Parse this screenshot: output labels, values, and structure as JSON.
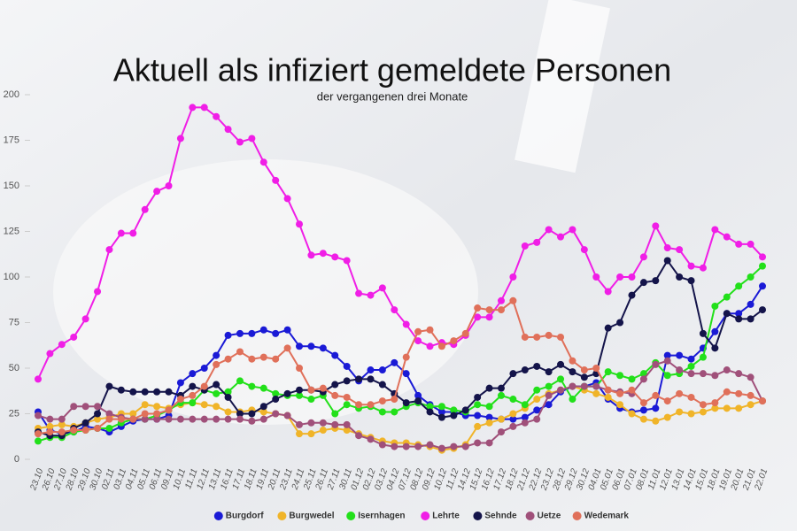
{
  "chart_data": {
    "type": "line",
    "title": "Aktuell als infiziert gemeldete Personen",
    "subtitle": "der vergangenen drei Monate",
    "categories": [
      "23.10",
      "26.10",
      "27.10",
      "28.10",
      "29.10",
      "30.10",
      "02.11",
      "03.11",
      "04.11",
      "05.11",
      "06.11",
      "09.11",
      "10.11",
      "11.11",
      "12.11",
      "13.11",
      "16.11",
      "17.11",
      "18.11",
      "19.11",
      "20.11",
      "23.11",
      "24.11",
      "25.11",
      "26.11",
      "27.11",
      "30.11",
      "01.12",
      "02.12",
      "03.12",
      "04.12",
      "07.12",
      "08.12",
      "09.12",
      "10.12",
      "11.12",
      "14.12",
      "15.12",
      "16.12",
      "17.12",
      "18.12",
      "21.12",
      "22.12",
      "23.12",
      "28.12",
      "29.12",
      "30.12",
      "04.01",
      "05.01",
      "06.01",
      "07.01",
      "08.01",
      "11.01",
      "12.01",
      "13.01",
      "14.01",
      "15.01",
      "18.01",
      "19.01",
      "20.01",
      "21.01",
      "22.01"
    ],
    "series": [
      {
        "name": "Burgdorf",
        "color": "#1a1ad6",
        "values": [
          26,
          16,
          14,
          15,
          18,
          17,
          15,
          18,
          21,
          22,
          22,
          24,
          42,
          47,
          50,
          57,
          68,
          69,
          69,
          71,
          69,
          71,
          62,
          62,
          61,
          57,
          51,
          43,
          49,
          49,
          53,
          47,
          35,
          30,
          26,
          26,
          24,
          24,
          23,
          22,
          22,
          23,
          27,
          30,
          37,
          40,
          40,
          42,
          33,
          28,
          26,
          27,
          28,
          57,
          57,
          55,
          61,
          70,
          80,
          80,
          85,
          95
        ]
      },
      {
        "name": "Burgwedel",
        "color": "#f0b429",
        "values": [
          17,
          18,
          19,
          18,
          20,
          22,
          23,
          25,
          25,
          30,
          29,
          28,
          30,
          31,
          30,
          29,
          26,
          26,
          27,
          26,
          25,
          24,
          14,
          14,
          16,
          17,
          16,
          14,
          12,
          10,
          9,
          9,
          8,
          7,
          5,
          6,
          8,
          18,
          20,
          22,
          25,
          28,
          33,
          36,
          38,
          40,
          38,
          36,
          34,
          30,
          25,
          22,
          21,
          23,
          26,
          25,
          26,
          28,
          28,
          28,
          30,
          32
        ]
      },
      {
        "name": "Isernhagen",
        "color": "#22e01a",
        "values": [
          10,
          12,
          12,
          15,
          16,
          17,
          17,
          20,
          22,
          22,
          24,
          27,
          31,
          31,
          38,
          36,
          37,
          43,
          40,
          39,
          36,
          35,
          35,
          33,
          35,
          25,
          30,
          28,
          29,
          26,
          26,
          29,
          31,
          29,
          29,
          27,
          26,
          30,
          29,
          35,
          33,
          30,
          38,
          40,
          44,
          33,
          40,
          40,
          48,
          46,
          44,
          47,
          53,
          46,
          47,
          51,
          56,
          84,
          89,
          95,
          100,
          106
        ]
      },
      {
        "name": "Lehrte",
        "color": "#f01ee6",
        "values": [
          44,
          58,
          63,
          67,
          77,
          92,
          115,
          124,
          124,
          137,
          147,
          150,
          176,
          193,
          193,
          188,
          181,
          174,
          176,
          163,
          153,
          143,
          129,
          112,
          113,
          111,
          109,
          91,
          90,
          94,
          82,
          74,
          65,
          62,
          64,
          63,
          68,
          78,
          78,
          87,
          100,
          117,
          119,
          126,
          122,
          126,
          115,
          100,
          92,
          100,
          100,
          111,
          128,
          116,
          115,
          106,
          105,
          126,
          122,
          118,
          118,
          111
        ]
      },
      {
        "name": "Sehnde",
        "color": "#14144a",
        "values": [
          15,
          13,
          13,
          17,
          20,
          25,
          40,
          38,
          37,
          37,
          37,
          37,
          35,
          40,
          38,
          41,
          34,
          25,
          25,
          29,
          33,
          36,
          38,
          38,
          37,
          41,
          43,
          44,
          44,
          41,
          36,
          31,
          32,
          26,
          23,
          24,
          27,
          34,
          39,
          39,
          47,
          49,
          51,
          48,
          52,
          48,
          45,
          47,
          72,
          75,
          90,
          97,
          98,
          109,
          100,
          98,
          69,
          61,
          80,
          77,
          77,
          82
        ]
      },
      {
        "name": "Uetze",
        "color": "#a0507a",
        "values": [
          24,
          22,
          22,
          29,
          29,
          29,
          25,
          23,
          22,
          22,
          22,
          22,
          22,
          22,
          22,
          22,
          22,
          22,
          21,
          22,
          25,
          24,
          19,
          20,
          20,
          19,
          19,
          13,
          11,
          8,
          7,
          7,
          7,
          8,
          6,
          7,
          7,
          9,
          9,
          15,
          18,
          20,
          22,
          35,
          38,
          40,
          40,
          40,
          38,
          37,
          36,
          44,
          52,
          54,
          49,
          47,
          47,
          46,
          49,
          47,
          45,
          32
        ]
      },
      {
        "name": "Wedemark",
        "color": "#e0705a",
        "values": [
          14,
          15,
          15,
          16,
          16,
          17,
          22,
          22,
          22,
          25,
          25,
          27,
          33,
          35,
          40,
          52,
          55,
          59,
          55,
          56,
          55,
          61,
          50,
          38,
          39,
          35,
          34,
          30,
          30,
          32,
          33,
          56,
          70,
          71,
          62,
          65,
          69,
          83,
          82,
          82,
          87,
          67,
          67,
          68,
          67,
          54,
          49,
          50,
          38,
          36,
          38,
          31,
          35,
          32,
          36,
          34,
          30,
          31,
          37,
          36,
          35,
          32
        ]
      }
    ],
    "ylim": [
      0,
      200
    ],
    "yticks": [
      0,
      25,
      50,
      75,
      100,
      125,
      150,
      175,
      200
    ],
    "legend": "bottom"
  }
}
